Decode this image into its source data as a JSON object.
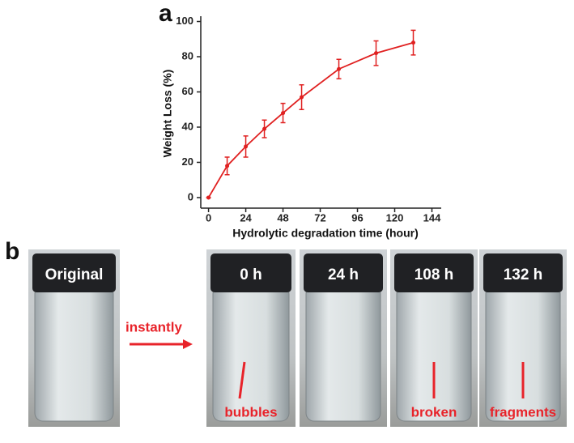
{
  "chart_data": {
    "type": "line",
    "x_label": "Hydrolytic degradation time (hour)",
    "y_label": "Weight Loss (%)",
    "x": [
      0,
      12,
      24,
      36,
      48,
      60,
      84,
      108,
      132
    ],
    "series": [
      {
        "color": "#e02020",
        "values": [
          0,
          18,
          29,
          39,
          48,
          57,
          73,
          82,
          88
        ],
        "errors": [
          0,
          5,
          6,
          5,
          5.5,
          7,
          5.5,
          7,
          7
        ]
      }
    ],
    "xlim": [
      -5,
      150
    ],
    "xticks": [
      0,
      24,
      48,
      72,
      96,
      120,
      144
    ],
    "ylim": [
      -6,
      103
    ],
    "yticks": [
      0,
      20,
      40,
      60,
      80,
      100
    ]
  },
  "panels": {
    "a": "a",
    "b": "b"
  },
  "arrow_label": "instantly",
  "photos": [
    {
      "label": "Original"
    },
    {
      "label": "0 h",
      "note": "bubbles"
    },
    {
      "label": "24 h"
    },
    {
      "label": "108 h",
      "note": "broken"
    },
    {
      "label": "132 h",
      "note": "fragments"
    }
  ]
}
